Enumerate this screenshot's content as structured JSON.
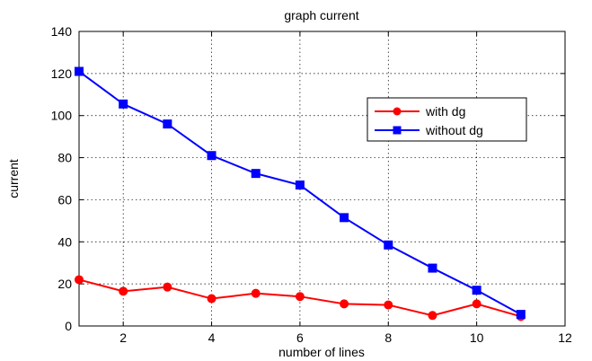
{
  "chart_data": {
    "type": "line",
    "title": "graph current",
    "xlabel": "number of lines",
    "ylabel": "current",
    "xlim": [
      1,
      12
    ],
    "ylim": [
      0,
      140
    ],
    "xticks": [
      2,
      4,
      6,
      8,
      10,
      12
    ],
    "yticks": [
      0,
      20,
      40,
      60,
      80,
      100,
      120,
      140
    ],
    "grid": true,
    "legend_position": "upper-right",
    "series": [
      {
        "name": "with dg",
        "color": "#ff0000",
        "marker": "circle",
        "x": [
          1,
          2,
          3,
          4,
          5,
          6,
          7,
          8,
          9,
          10,
          11
        ],
        "y": [
          22,
          16.5,
          18.5,
          13,
          15.5,
          14,
          10.5,
          10,
          5,
          10.5,
          4.5
        ]
      },
      {
        "name": "without dg",
        "color": "#0000ff",
        "marker": "square",
        "x": [
          1,
          2,
          3,
          4,
          5,
          6,
          7,
          8,
          9,
          10,
          11
        ],
        "y": [
          121,
          105.5,
          96,
          81,
          72.5,
          67,
          51.5,
          38.5,
          27.5,
          17,
          5.5
        ]
      }
    ]
  }
}
